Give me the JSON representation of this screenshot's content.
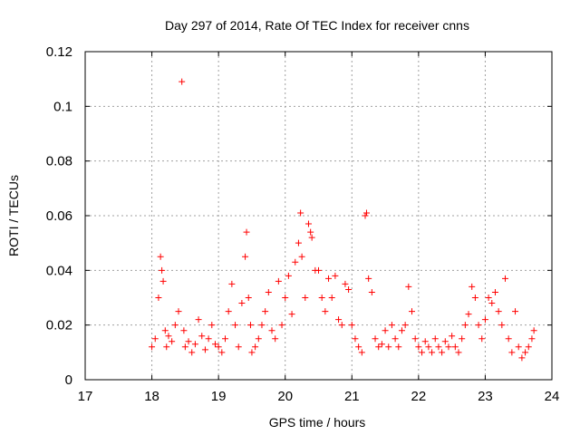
{
  "chart_data": {
    "type": "scatter",
    "title": "Day 297 of 2014, Rate Of TEC Index for receiver cnns",
    "xlabel": "GPS time / hours",
    "ylabel": "ROTI / TECUs",
    "xlim": [
      17,
      24
    ],
    "ylim": [
      0,
      0.12
    ],
    "x_ticks": [
      "17",
      "18",
      "19",
      "20",
      "21",
      "22",
      "23",
      "24"
    ],
    "y_ticks": [
      "0",
      "0.02",
      "0.04",
      "0.06",
      "0.08",
      "0.1",
      "0.12"
    ],
    "grid": true,
    "marker": "+",
    "series": [
      {
        "name": "ROTI",
        "color": "#ff0000",
        "x": [
          18.0,
          18.05,
          18.1,
          18.13,
          18.15,
          18.17,
          18.2,
          18.22,
          18.25,
          18.3,
          18.35,
          18.4,
          18.45,
          18.48,
          18.5,
          18.55,
          18.6,
          18.65,
          18.7,
          18.75,
          18.8,
          18.85,
          18.9,
          18.95,
          19.0,
          19.05,
          19.1,
          19.15,
          19.2,
          19.25,
          19.3,
          19.35,
          19.4,
          19.42,
          19.45,
          19.48,
          19.5,
          19.55,
          19.6,
          19.65,
          19.7,
          19.75,
          19.8,
          19.85,
          19.9,
          19.95,
          20.0,
          20.05,
          20.1,
          20.15,
          20.2,
          20.23,
          20.25,
          20.3,
          20.35,
          20.38,
          20.4,
          20.45,
          20.5,
          20.55,
          20.6,
          20.65,
          20.7,
          20.75,
          20.8,
          20.85,
          20.9,
          20.95,
          21.0,
          21.05,
          21.1,
          21.15,
          21.2,
          21.22,
          21.25,
          21.3,
          21.35,
          21.4,
          21.45,
          21.5,
          21.55,
          21.6,
          21.65,
          21.7,
          21.75,
          21.8,
          21.85,
          21.9,
          21.95,
          22.0,
          22.05,
          22.1,
          22.15,
          22.2,
          22.25,
          22.3,
          22.35,
          22.4,
          22.45,
          22.5,
          22.55,
          22.6,
          22.65,
          22.7,
          22.75,
          22.8,
          22.85,
          22.9,
          22.95,
          23.0,
          23.05,
          23.1,
          23.15,
          23.2,
          23.25,
          23.3,
          23.35,
          23.4,
          23.45,
          23.5,
          23.55,
          23.6,
          23.65,
          23.7,
          23.73
        ],
        "y": [
          0.012,
          0.015,
          0.03,
          0.045,
          0.04,
          0.036,
          0.018,
          0.012,
          0.016,
          0.014,
          0.02,
          0.025,
          0.109,
          0.018,
          0.012,
          0.014,
          0.01,
          0.013,
          0.022,
          0.016,
          0.011,
          0.015,
          0.02,
          0.013,
          0.012,
          0.01,
          0.015,
          0.025,
          0.035,
          0.02,
          0.012,
          0.028,
          0.045,
          0.054,
          0.03,
          0.02,
          0.01,
          0.012,
          0.015,
          0.02,
          0.025,
          0.032,
          0.018,
          0.015,
          0.036,
          0.02,
          0.03,
          0.038,
          0.024,
          0.043,
          0.05,
          0.061,
          0.045,
          0.03,
          0.057,
          0.054,
          0.052,
          0.04,
          0.04,
          0.03,
          0.025,
          0.037,
          0.03,
          0.038,
          0.022,
          0.02,
          0.035,
          0.033,
          0.02,
          0.015,
          0.012,
          0.01,
          0.06,
          0.061,
          0.037,
          0.032,
          0.015,
          0.012,
          0.013,
          0.018,
          0.012,
          0.02,
          0.015,
          0.012,
          0.018,
          0.02,
          0.034,
          0.025,
          0.015,
          0.012,
          0.01,
          0.014,
          0.012,
          0.01,
          0.015,
          0.012,
          0.01,
          0.014,
          0.012,
          0.016,
          0.012,
          0.01,
          0.015,
          0.02,
          0.024,
          0.034,
          0.03,
          0.02,
          0.015,
          0.022,
          0.03,
          0.028,
          0.032,
          0.025,
          0.02,
          0.037,
          0.015,
          0.01,
          0.025,
          0.012,
          0.008,
          0.01,
          0.012,
          0.015,
          0.018
        ]
      }
    ]
  }
}
